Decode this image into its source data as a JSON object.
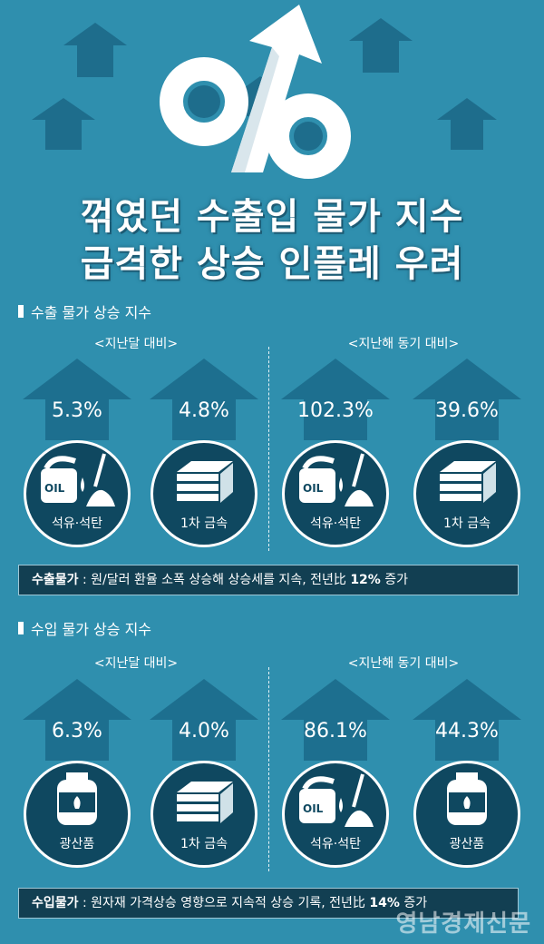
{
  "headline": {
    "line1": "꺾였던 수출입 물가 지수",
    "line2": "급격한 상승 인플레 우려"
  },
  "export_section": {
    "title": "수출 물가 상승 지수",
    "left_label": "<지난달 대비>",
    "right_label": "<지난해 동기 대비>",
    "items": [
      {
        "pct": "5.3%",
        "label": "석유·석탄",
        "icon": "oil-coal-icon"
      },
      {
        "pct": "4.8%",
        "label": "1차 금속",
        "icon": "metal-bars-icon"
      },
      {
        "pct": "102.3%",
        "label": "석유·석탄",
        "icon": "oil-coal-icon"
      },
      {
        "pct": "39.6%",
        "label": "1차 금속",
        "icon": "metal-bars-icon"
      }
    ],
    "banner_bold": "수출물가",
    "banner_text": " : 원/달러 환율 소폭 상승해 상승세를 지속, 전년比 ",
    "banner_pct": "12%",
    "banner_tail": " 증가"
  },
  "import_section": {
    "title": "수입 물가 상승 지수",
    "left_label": "<지난달 대비>",
    "right_label": "<지난해 동기 대비>",
    "items": [
      {
        "pct": "6.3%",
        "label": "광산품",
        "icon": "gas-cylinder-icon"
      },
      {
        "pct": "4.0%",
        "label": "1차 금속",
        "icon": "metal-bars-icon"
      },
      {
        "pct": "86.1%",
        "label": "석유·석탄",
        "icon": "oil-coal-icon"
      },
      {
        "pct": "44.3%",
        "label": "광산품",
        "icon": "gas-cylinder-icon"
      }
    ],
    "banner_bold": "수입물가",
    "banner_text": " : 원자재 가격상승 영향으로 지속적 상승 기록, 전년比 ",
    "banner_pct": "14%",
    "banner_tail": " 증가"
  },
  "watermark": "영남경제신문",
  "colors": {
    "background": "#2f8fae",
    "arrow": "#1d6f8f",
    "circle": "#0f4860",
    "banner": "#123f52"
  }
}
